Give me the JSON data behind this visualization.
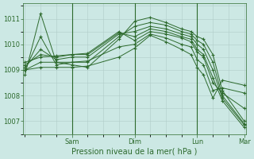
{
  "background_color": "#cce8e4",
  "plot_bg_color": "#cce8e4",
  "line_color": "#2d6a2d",
  "grid_color": "#b0ccc8",
  "xlabel": "Pression niveau de la mer( hPa )",
  "yticks": [
    1007,
    1008,
    1009,
    1010,
    1011
  ],
  "ylim": [
    1006.5,
    1011.6
  ],
  "xlim": [
    -0.05,
    7.05
  ],
  "day_lines": [
    1.5,
    3.5,
    5.5
  ],
  "xtick_positions": [
    1.5,
    3.5,
    5.5,
    7.0
  ],
  "xtick_labels": [
    "Sam",
    "Dim",
    "Lun",
    "Mar"
  ],
  "series": [
    {
      "x": [
        0.0,
        0.5,
        1.0,
        1.5,
        2.0,
        3.0,
        3.5,
        4.0,
        4.5,
        5.0,
        5.3,
        5.5,
        5.7,
        6.0,
        6.3,
        7.0
      ],
      "y": [
        1008.8,
        1011.2,
        1009.3,
        1009.2,
        1009.1,
        1010.2,
        1010.9,
        1011.05,
        1010.85,
        1010.6,
        1010.5,
        1010.3,
        1010.2,
        1009.6,
        1008.2,
        1007.0
      ]
    },
    {
      "x": [
        0.0,
        0.5,
        1.0,
        1.5,
        2.0,
        3.0,
        3.5,
        4.0,
        4.5,
        5.0,
        5.3,
        5.5,
        5.7,
        6.0,
        6.3,
        7.0
      ],
      "y": [
        1009.0,
        1010.3,
        1009.2,
        1009.3,
        1009.3,
        1010.3,
        1010.7,
        1010.85,
        1010.75,
        1010.5,
        1010.4,
        1010.15,
        1010.0,
        1009.3,
        1008.0,
        1006.9
      ]
    },
    {
      "x": [
        0.0,
        0.5,
        1.0,
        1.5,
        2.0,
        3.0,
        3.5,
        4.0,
        4.5,
        5.0,
        5.3,
        5.5,
        5.7,
        6.0,
        6.3,
        7.0
      ],
      "y": [
        1009.1,
        1009.8,
        1009.4,
        1009.5,
        1009.5,
        1010.4,
        1010.5,
        1010.7,
        1010.6,
        1010.4,
        1010.3,
        1010.0,
        1009.8,
        1009.0,
        1007.9,
        1006.85
      ]
    },
    {
      "x": [
        0.0,
        0.5,
        1.0,
        1.5,
        2.0,
        3.0,
        3.5,
        4.0,
        4.5,
        5.0,
        5.3,
        5.5,
        5.7,
        6.0,
        6.3,
        7.0
      ],
      "y": [
        1009.2,
        1009.6,
        1009.5,
        1009.6,
        1009.6,
        1010.45,
        1010.3,
        1010.6,
        1010.5,
        1010.3,
        1010.2,
        1009.8,
        1009.6,
        1008.7,
        1007.8,
        1006.75
      ]
    },
    {
      "x": [
        0.0,
        0.5,
        1.0,
        1.5,
        2.0,
        3.0,
        3.5,
        4.0,
        4.5,
        5.0,
        5.3,
        5.5,
        5.7,
        6.0,
        6.3,
        7.0
      ],
      "y": [
        1009.3,
        1009.5,
        1009.55,
        1009.6,
        1009.65,
        1010.5,
        1010.15,
        1010.5,
        1010.4,
        1010.25,
        1010.1,
        1009.7,
        1009.5,
        1008.5,
        1008.1,
        1007.5
      ]
    },
    {
      "x": [
        0.0,
        0.5,
        1.0,
        1.5,
        2.0,
        3.0,
        3.5,
        4.0,
        4.5,
        5.0,
        5.3,
        5.5,
        5.7,
        6.0,
        6.3,
        7.0
      ],
      "y": [
        1009.0,
        1009.3,
        1009.3,
        1009.3,
        1009.35,
        1009.9,
        1010.0,
        1010.4,
        1010.25,
        1010.0,
        1009.9,
        1009.4,
        1009.2,
        1008.2,
        1008.3,
        1008.1
      ]
    },
    {
      "x": [
        0.0,
        0.5,
        1.0,
        1.5,
        2.0,
        3.0,
        3.5,
        4.0,
        4.5,
        5.0,
        5.3,
        5.5,
        5.7,
        6.0,
        6.3,
        7.0
      ],
      "y": [
        1009.0,
        1009.1,
        1009.1,
        1009.1,
        1009.15,
        1009.5,
        1009.85,
        1010.35,
        1010.1,
        1009.8,
        1009.6,
        1009.1,
        1008.8,
        1007.9,
        1008.6,
        1008.4
      ]
    }
  ]
}
